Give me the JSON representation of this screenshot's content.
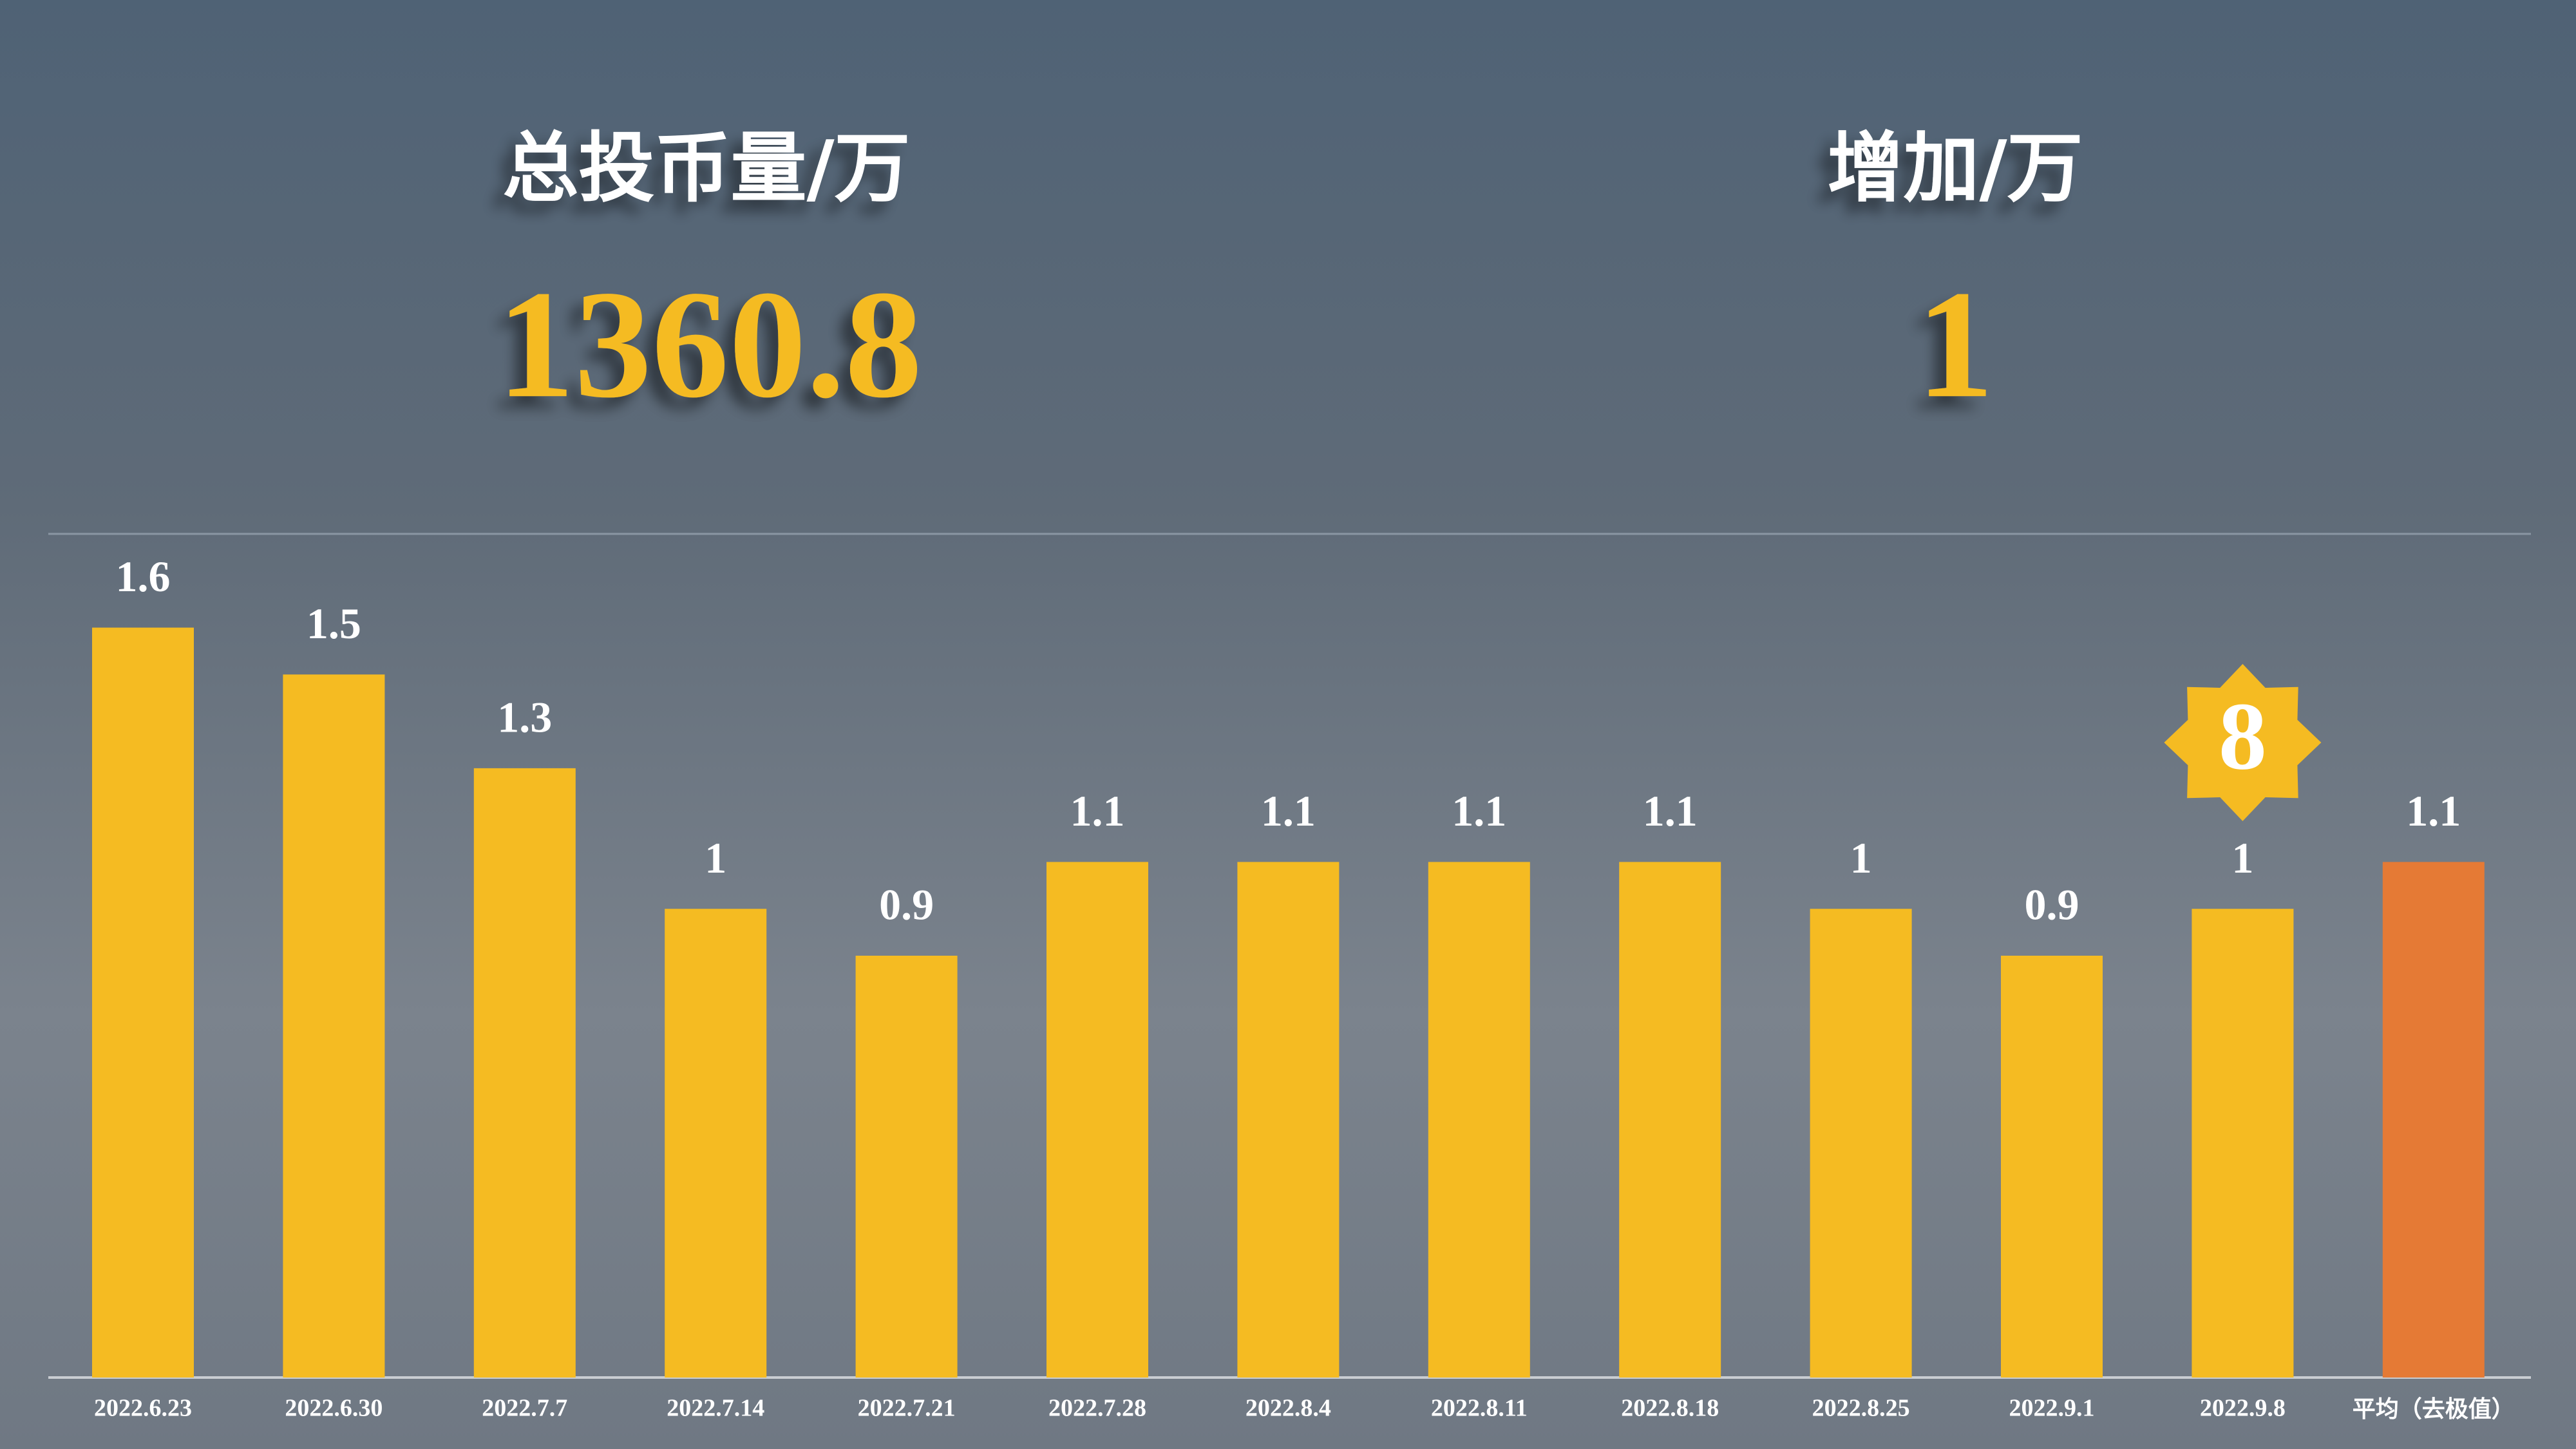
{
  "chart_data": {
    "type": "bar",
    "stats": [
      {
        "label": "总投币量/万",
        "value": 1360.8
      },
      {
        "label": "增加/万",
        "value": 1
      }
    ],
    "badge": 8,
    "categories": [
      "2022.6.23",
      "2022.6.30",
      "2022.7.7",
      "2022.7.14",
      "2022.7.21",
      "2022.7.28",
      "2022.8.4",
      "2022.8.11",
      "2022.8.18",
      "2022.8.25",
      "2022.9.1",
      "2022.9.8",
      "平均（去极值）"
    ],
    "values": [
      1.6,
      1.5,
      1.3,
      1,
      0.9,
      1.1,
      1.1,
      1.1,
      1.1,
      1,
      0.9,
      1,
      1.1
    ],
    "colors": [
      "#f5bb22",
      "#f5bb22",
      "#f5bb22",
      "#f5bb22",
      "#f5bb22",
      "#f5bb22",
      "#f5bb22",
      "#f5bb22",
      "#f5bb22",
      "#f5bb22",
      "#f5bb22",
      "#f5bb22",
      "#e57a35"
    ],
    "ylim": [
      0,
      1.8
    ]
  }
}
